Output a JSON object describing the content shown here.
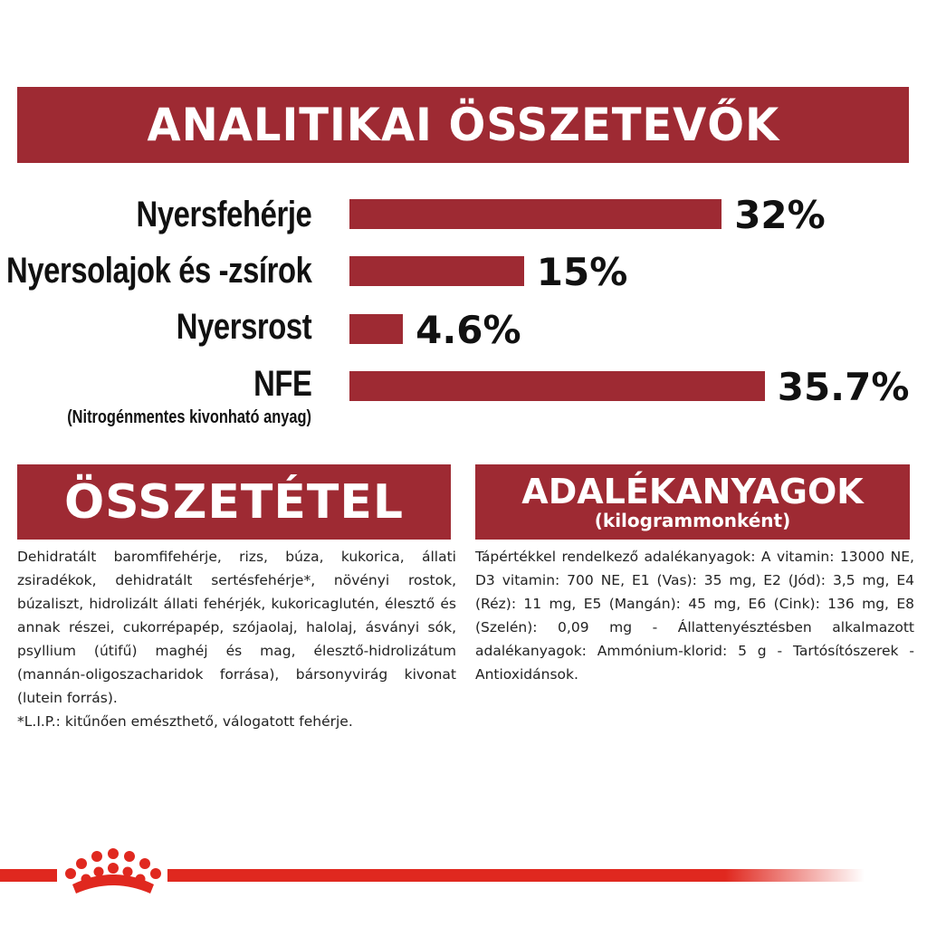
{
  "header": {
    "title": "ANALITIKAI ÖSSZETEVŐK"
  },
  "analytics": {
    "rows": [
      {
        "label": "Nyersfehérje",
        "value_label": "32%"
      },
      {
        "label": "Nyersolajok és -zsírok",
        "value_label": "15%"
      },
      {
        "label": "Nyersrost",
        "value_label": "4.6%"
      },
      {
        "label": "NFE",
        "sublabel": "(Nitrogénmentes kivonható anyag)",
        "value_label": "35.7%"
      }
    ]
  },
  "chart_data": {
    "type": "bar",
    "title": "ANALITIKAI ÖSSZETEVŐK",
    "categories": [
      "Nyersfehérje",
      "Nyersolajok és -zsírok",
      "Nyersrost",
      "NFE"
    ],
    "values": [
      32,
      15,
      4.6,
      35.7
    ],
    "unit": "%",
    "orientation": "horizontal",
    "color": "#9e2a33"
  },
  "composition": {
    "title": "ÖSSZETÉTEL",
    "text": "Dehidratált baromfifehérje, rizs, búza, kukorica, állati zsiradékok, dehidratált sertésfehérje*, növényi rostok, búzaliszt, hidrolizált állati fehérjék, kukoricaglutén, élesztő és annak részei, cukorrépapép, szójaolaj, halolaj, ásványi sók, psyllium (útifű) maghéj és mag, élesztő-hidrolizátum (mannán-oligoszacharidok forrása), bársonyvirág kivonat (lutein forrás).",
    "footnote": "*L.I.P.: kitűnően emészthető, válogatott fehérje."
  },
  "additives": {
    "title": "ADALÉKANYAGOK",
    "subtitle": "(kilogrammonként)",
    "text": "Tápértékkel rendelkező adalékanyagok: A vitamin: 13000 NE, D3 vitamin: 700 NE, E1 (Vas): 35 mg, E2 (Jód): 3,5 mg, E4 (Réz): 11 mg, E5 (Mangán): 45 mg, E6 (Cink): 136 mg, E8 (Szelén): 0,09 mg - Állattenyésztésben alkalmazott adalékanyagok: Ammónium-klorid: 5 g - Tartósítószerek - Antioxidánsok."
  },
  "colors": {
    "brand_red": "#9e2a33",
    "accent_red": "#e0281f"
  },
  "icons": {
    "logo": "crown-logo-icon"
  }
}
